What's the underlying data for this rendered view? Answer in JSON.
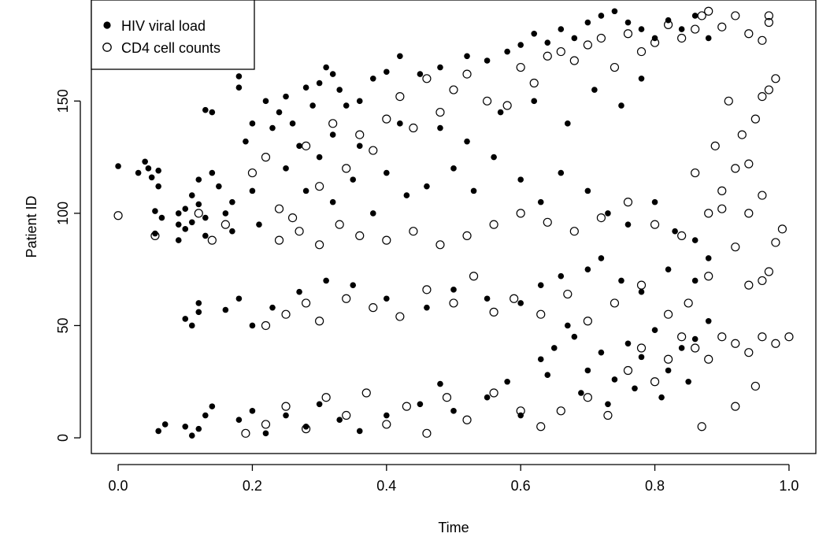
{
  "chart_data": {
    "type": "scatter",
    "title": "",
    "xlabel": "Time",
    "ylabel": "Patient ID",
    "xlim": [
      -0.04,
      1.04
    ],
    "ylim": [
      -7,
      195
    ],
    "x_ticks": [
      0.0,
      0.2,
      0.4,
      0.6,
      0.8,
      1.0
    ],
    "x_tick_labels": [
      "0.0",
      "0.2",
      "0.4",
      "0.6",
      "0.8",
      "1.0"
    ],
    "y_ticks": [
      0,
      50,
      100,
      150
    ],
    "y_tick_labels": [
      "0",
      "50",
      "100",
      "150"
    ],
    "grid": false,
    "legend_position": "top-left",
    "series": [
      {
        "name": "HIV viral load",
        "marker": "filled-circle",
        "color": "#000000",
        "points": [
          [
            0.0,
            121
          ],
          [
            0.03,
            118
          ],
          [
            0.04,
            123
          ],
          [
            0.045,
            120
          ],
          [
            0.05,
            116
          ],
          [
            0.06,
            112
          ],
          [
            0.06,
            119
          ],
          [
            0.055,
            101
          ],
          [
            0.055,
            91
          ],
          [
            0.065,
            98
          ],
          [
            0.09,
            95
          ],
          [
            0.09,
            100
          ],
          [
            0.09,
            88
          ],
          [
            0.1,
            102
          ],
          [
            0.1,
            93
          ],
          [
            0.11,
            108
          ],
          [
            0.11,
            96
          ],
          [
            0.12,
            104
          ],
          [
            0.12,
            115
          ],
          [
            0.13,
            90
          ],
          [
            0.13,
            98
          ],
          [
            0.13,
            146
          ],
          [
            0.14,
            145
          ],
          [
            0.14,
            118
          ],
          [
            0.15,
            112
          ],
          [
            0.16,
            100
          ],
          [
            0.17,
            105
          ],
          [
            0.17,
            92
          ],
          [
            0.18,
            161
          ],
          [
            0.18,
            156
          ],
          [
            0.19,
            132
          ],
          [
            0.2,
            140
          ],
          [
            0.2,
            110
          ],
          [
            0.21,
            95
          ],
          [
            0.22,
            150
          ],
          [
            0.23,
            138
          ],
          [
            0.24,
            145
          ],
          [
            0.25,
            152
          ],
          [
            0.26,
            140
          ],
          [
            0.27,
            130
          ],
          [
            0.28,
            156
          ],
          [
            0.29,
            148
          ],
          [
            0.3,
            158
          ],
          [
            0.31,
            165
          ],
          [
            0.32,
            162
          ],
          [
            0.33,
            155
          ],
          [
            0.34,
            148
          ],
          [
            0.36,
            150
          ],
          [
            0.38,
            160
          ],
          [
            0.4,
            163
          ],
          [
            0.42,
            170
          ],
          [
            0.45,
            162
          ],
          [
            0.48,
            165
          ],
          [
            0.52,
            170
          ],
          [
            0.55,
            168
          ],
          [
            0.58,
            172
          ],
          [
            0.6,
            175
          ],
          [
            0.62,
            180
          ],
          [
            0.64,
            176
          ],
          [
            0.66,
            182
          ],
          [
            0.68,
            178
          ],
          [
            0.7,
            185
          ],
          [
            0.72,
            188
          ],
          [
            0.74,
            190
          ],
          [
            0.76,
            185
          ],
          [
            0.78,
            182
          ],
          [
            0.8,
            178
          ],
          [
            0.82,
            186
          ],
          [
            0.84,
            182
          ],
          [
            0.86,
            188
          ],
          [
            0.88,
            178
          ],
          [
            0.25,
            120
          ],
          [
            0.28,
            110
          ],
          [
            0.3,
            125
          ],
          [
            0.32,
            105
          ],
          [
            0.35,
            115
          ],
          [
            0.38,
            100
          ],
          [
            0.4,
            118
          ],
          [
            0.43,
            108
          ],
          [
            0.46,
            112
          ],
          [
            0.5,
            120
          ],
          [
            0.53,
            110
          ],
          [
            0.56,
            125
          ],
          [
            0.6,
            115
          ],
          [
            0.63,
            105
          ],
          [
            0.66,
            118
          ],
          [
            0.7,
            110
          ],
          [
            0.73,
            100
          ],
          [
            0.76,
            95
          ],
          [
            0.8,
            105
          ],
          [
            0.83,
            92
          ],
          [
            0.86,
            88
          ],
          [
            0.88,
            80
          ],
          [
            0.32,
            135
          ],
          [
            0.36,
            130
          ],
          [
            0.42,
            140
          ],
          [
            0.48,
            138
          ],
          [
            0.52,
            132
          ],
          [
            0.57,
            145
          ],
          [
            0.62,
            150
          ],
          [
            0.67,
            140
          ],
          [
            0.71,
            155
          ],
          [
            0.75,
            148
          ],
          [
            0.78,
            160
          ],
          [
            0.1,
            53
          ],
          [
            0.11,
            50
          ],
          [
            0.12,
            56
          ],
          [
            0.12,
            60
          ],
          [
            0.16,
            57
          ],
          [
            0.18,
            62
          ],
          [
            0.2,
            50
          ],
          [
            0.23,
            58
          ],
          [
            0.27,
            65
          ],
          [
            0.31,
            70
          ],
          [
            0.35,
            68
          ],
          [
            0.4,
            62
          ],
          [
            0.46,
            58
          ],
          [
            0.5,
            66
          ],
          [
            0.55,
            62
          ],
          [
            0.6,
            60
          ],
          [
            0.63,
            68
          ],
          [
            0.66,
            72
          ],
          [
            0.7,
            75
          ],
          [
            0.72,
            80
          ],
          [
            0.75,
            70
          ],
          [
            0.78,
            65
          ],
          [
            0.82,
            75
          ],
          [
            0.86,
            70
          ],
          [
            0.06,
            3
          ],
          [
            0.07,
            6
          ],
          [
            0.1,
            5
          ],
          [
            0.11,
            1
          ],
          [
            0.12,
            4
          ],
          [
            0.13,
            10
          ],
          [
            0.14,
            14
          ],
          [
            0.18,
            8
          ],
          [
            0.2,
            12
          ],
          [
            0.22,
            2
          ],
          [
            0.25,
            10
          ],
          [
            0.28,
            5
          ],
          [
            0.3,
            15
          ],
          [
            0.33,
            8
          ],
          [
            0.36,
            3
          ],
          [
            0.4,
            10
          ],
          [
            0.45,
            15
          ],
          [
            0.48,
            24
          ],
          [
            0.5,
            12
          ],
          [
            0.55,
            18
          ],
          [
            0.58,
            25
          ],
          [
            0.6,
            10
          ],
          [
            0.63,
            35
          ],
          [
            0.65,
            40
          ],
          [
            0.67,
            50
          ],
          [
            0.68,
            45
          ],
          [
            0.7,
            30
          ],
          [
            0.72,
            38
          ],
          [
            0.74,
            26
          ],
          [
            0.76,
            42
          ],
          [
            0.78,
            36
          ],
          [
            0.8,
            48
          ],
          [
            0.82,
            30
          ],
          [
            0.84,
            40
          ],
          [
            0.86,
            44
          ],
          [
            0.88,
            52
          ],
          [
            0.64,
            28
          ],
          [
            0.69,
            20
          ],
          [
            0.73,
            15
          ],
          [
            0.77,
            22
          ],
          [
            0.81,
            18
          ],
          [
            0.85,
            25
          ]
        ]
      },
      {
        "name": "CD4 cell counts",
        "marker": "open-circle",
        "color": "#000000",
        "points": [
          [
            0.0,
            99
          ],
          [
            0.055,
            90
          ],
          [
            0.12,
            100
          ],
          [
            0.14,
            88
          ],
          [
            0.16,
            95
          ],
          [
            0.2,
            118
          ],
          [
            0.22,
            125
          ],
          [
            0.24,
            102
          ],
          [
            0.26,
            98
          ],
          [
            0.28,
            130
          ],
          [
            0.3,
            112
          ],
          [
            0.32,
            140
          ],
          [
            0.34,
            120
          ],
          [
            0.36,
            135
          ],
          [
            0.38,
            128
          ],
          [
            0.4,
            142
          ],
          [
            0.42,
            152
          ],
          [
            0.44,
            138
          ],
          [
            0.46,
            160
          ],
          [
            0.48,
            145
          ],
          [
            0.5,
            155
          ],
          [
            0.52,
            162
          ],
          [
            0.55,
            150
          ],
          [
            0.58,
            148
          ],
          [
            0.6,
            165
          ],
          [
            0.62,
            158
          ],
          [
            0.64,
            170
          ],
          [
            0.66,
            172
          ],
          [
            0.68,
            168
          ],
          [
            0.7,
            175
          ],
          [
            0.72,
            178
          ],
          [
            0.74,
            165
          ],
          [
            0.76,
            180
          ],
          [
            0.78,
            172
          ],
          [
            0.8,
            176
          ],
          [
            0.82,
            184
          ],
          [
            0.84,
            178
          ],
          [
            0.86,
            182
          ],
          [
            0.87,
            188
          ],
          [
            0.88,
            190
          ],
          [
            0.9,
            183
          ],
          [
            0.92,
            188
          ],
          [
            0.94,
            180
          ],
          [
            0.96,
            177
          ],
          [
            0.97,
            188
          ],
          [
            0.97,
            185
          ],
          [
            0.24,
            88
          ],
          [
            0.27,
            92
          ],
          [
            0.3,
            86
          ],
          [
            0.33,
            95
          ],
          [
            0.36,
            90
          ],
          [
            0.4,
            88
          ],
          [
            0.44,
            92
          ],
          [
            0.48,
            86
          ],
          [
            0.52,
            90
          ],
          [
            0.56,
            95
          ],
          [
            0.6,
            100
          ],
          [
            0.64,
            96
          ],
          [
            0.68,
            92
          ],
          [
            0.72,
            98
          ],
          [
            0.76,
            105
          ],
          [
            0.8,
            95
          ],
          [
            0.84,
            90
          ],
          [
            0.88,
            100
          ],
          [
            0.9,
            102
          ],
          [
            0.92,
            85
          ],
          [
            0.94,
            100
          ],
          [
            0.96,
            108
          ],
          [
            0.98,
            87
          ],
          [
            0.99,
            93
          ],
          [
            0.86,
            118
          ],
          [
            0.9,
            110
          ],
          [
            0.92,
            120
          ],
          [
            0.94,
            122
          ],
          [
            0.96,
            152
          ],
          [
            0.97,
            155
          ],
          [
            0.98,
            160
          ],
          [
            0.93,
            135
          ],
          [
            0.95,
            142
          ],
          [
            0.91,
            150
          ],
          [
            0.89,
            130
          ],
          [
            0.22,
            50
          ],
          [
            0.25,
            55
          ],
          [
            0.28,
            60
          ],
          [
            0.3,
            52
          ],
          [
            0.34,
            62
          ],
          [
            0.38,
            58
          ],
          [
            0.42,
            54
          ],
          [
            0.46,
            66
          ],
          [
            0.5,
            60
          ],
          [
            0.53,
            72
          ],
          [
            0.56,
            56
          ],
          [
            0.59,
            62
          ],
          [
            0.63,
            55
          ],
          [
            0.67,
            64
          ],
          [
            0.7,
            52
          ],
          [
            0.74,
            60
          ],
          [
            0.78,
            68
          ],
          [
            0.82,
            55
          ],
          [
            0.85,
            60
          ],
          [
            0.88,
            72
          ],
          [
            0.92,
            42
          ],
          [
            0.94,
            68
          ],
          [
            0.96,
            70
          ],
          [
            0.97,
            74
          ],
          [
            0.19,
            2
          ],
          [
            0.22,
            6
          ],
          [
            0.25,
            14
          ],
          [
            0.28,
            4
          ],
          [
            0.31,
            18
          ],
          [
            0.34,
            10
          ],
          [
            0.37,
            20
          ],
          [
            0.4,
            6
          ],
          [
            0.43,
            14
          ],
          [
            0.46,
            2
          ],
          [
            0.49,
            18
          ],
          [
            0.52,
            8
          ],
          [
            0.56,
            20
          ],
          [
            0.6,
            12
          ],
          [
            0.63,
            5
          ],
          [
            0.66,
            12
          ],
          [
            0.7,
            18
          ],
          [
            0.73,
            10
          ],
          [
            0.76,
            30
          ],
          [
            0.78,
            40
          ],
          [
            0.8,
            25
          ],
          [
            0.82,
            35
          ],
          [
            0.84,
            45
          ],
          [
            0.86,
            40
          ],
          [
            0.87,
            5
          ],
          [
            0.88,
            35
          ],
          [
            0.9,
            45
          ],
          [
            0.92,
            14
          ],
          [
            0.94,
            38
          ],
          [
            0.95,
            23
          ],
          [
            0.96,
            45
          ],
          [
            0.98,
            42
          ],
          [
            1.0,
            45
          ]
        ]
      }
    ]
  }
}
